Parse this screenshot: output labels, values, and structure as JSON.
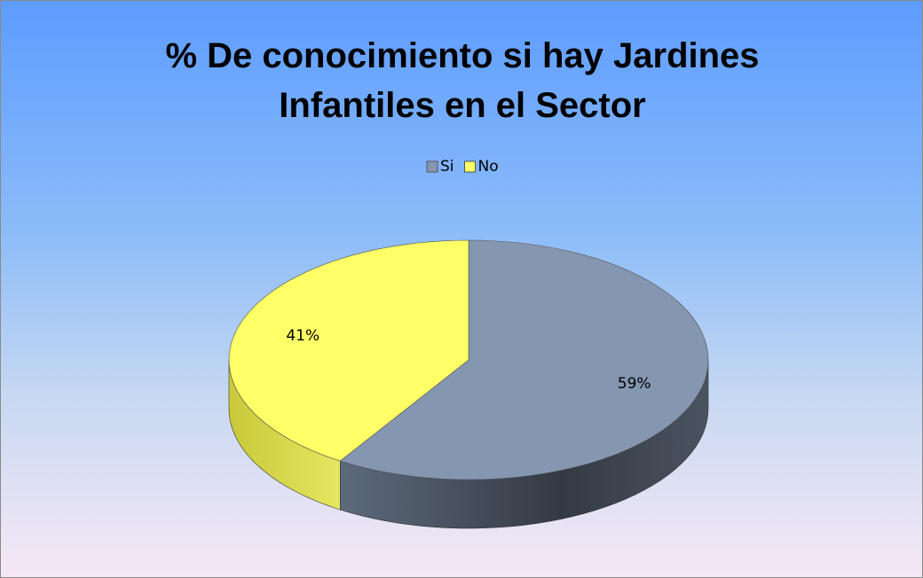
{
  "chart_data": {
    "type": "pie",
    "title": "% De conocimiento si hay Jardines Infantiles en el Sector",
    "categories": [
      "Si",
      "No"
    ],
    "values": [
      59,
      41
    ],
    "value_labels": [
      "59%",
      "41%"
    ],
    "colors": [
      "#8496b0",
      "#ffff66"
    ],
    "legend": "top"
  }
}
